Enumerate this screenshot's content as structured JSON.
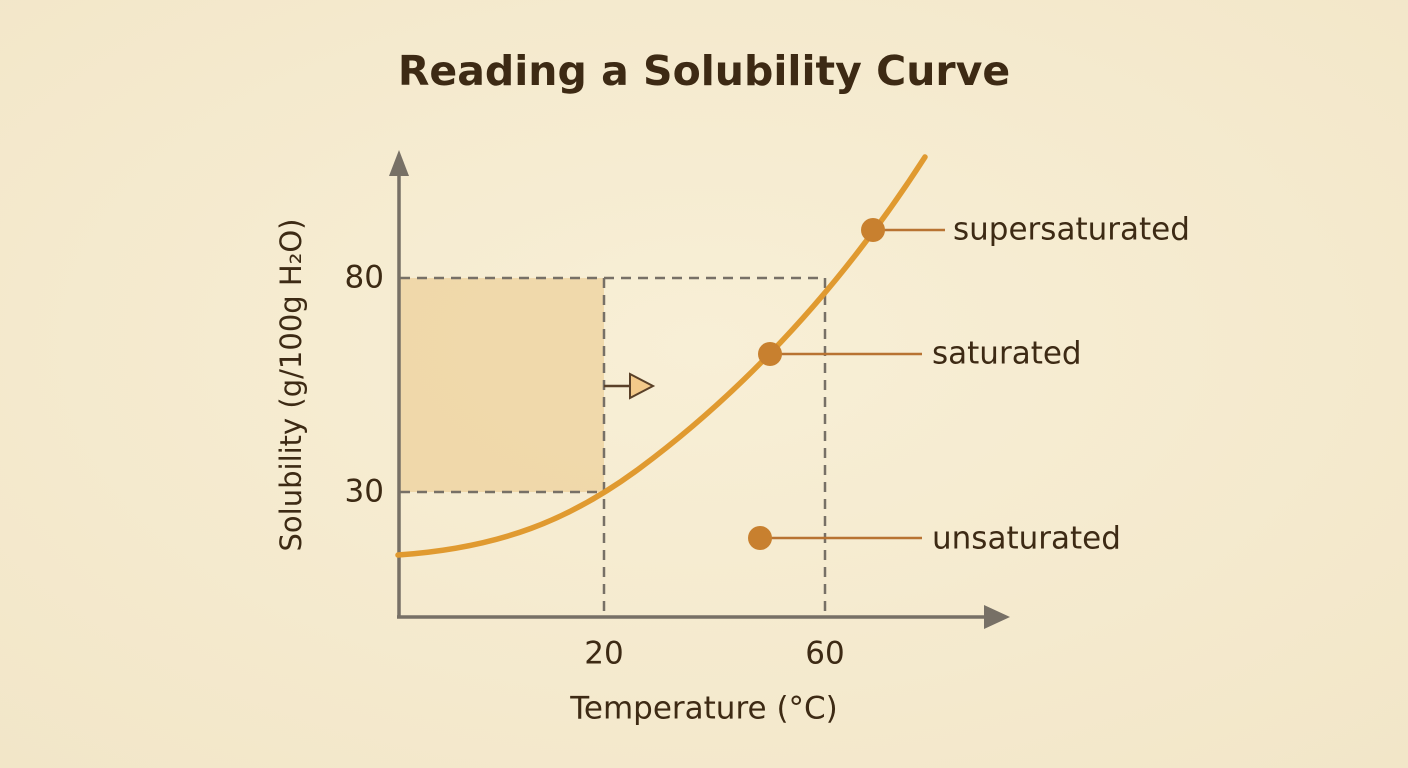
{
  "title": "Reading a Solubility Curve",
  "y_axis": {
    "label": "Solubility (g/100g H₂O)",
    "ticks": [
      "80",
      "30"
    ]
  },
  "x_axis": {
    "label": "Temperature (°C)",
    "ticks": [
      "20",
      "60"
    ]
  },
  "points": [
    {
      "label": "supersaturated"
    },
    {
      "label": "saturated"
    },
    {
      "label": "unsaturated"
    }
  ]
}
